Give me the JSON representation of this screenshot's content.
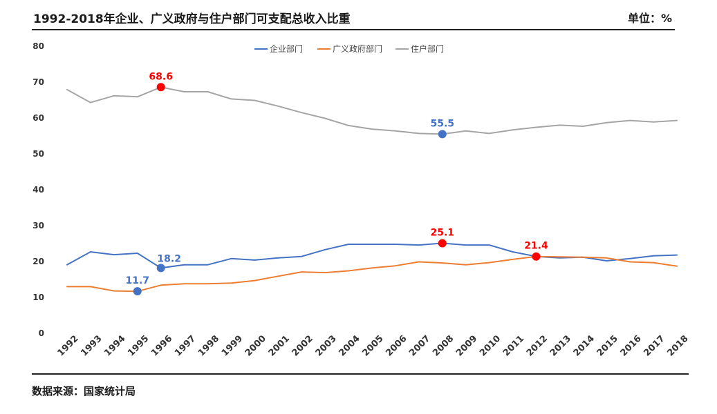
{
  "header": {
    "title": "1992-2018年企业、广义政府与住户部门可支配总收入比重",
    "unit": "单位：%"
  },
  "footer": {
    "source": "数据来源：国家统计局"
  },
  "colors": {
    "enterprise": "#4472C4",
    "government": "#ED7D31",
    "household": "#A5A5A5",
    "highlight_red": "#FF0000",
    "highlight_blue": "#4472C4"
  },
  "chart_data": {
    "type": "line",
    "title": "1992-2018年企业、广义政府与住户部门可支配总收入比重",
    "xlabel": "",
    "ylabel": "",
    "ylim": [
      0,
      80
    ],
    "yticks": [
      0,
      10,
      20,
      30,
      40,
      50,
      60,
      70,
      80
    ],
    "grid": false,
    "legend_position": "top-center",
    "categories": [
      "1992",
      "1993",
      "1994",
      "1995",
      "1996",
      "1997",
      "1998",
      "1999",
      "2000",
      "2001",
      "2002",
      "2003",
      "2004",
      "2005",
      "2006",
      "2007",
      "2008",
      "2009",
      "2010",
      "2011",
      "2012",
      "2013",
      "2014",
      "2015",
      "2016",
      "2017",
      "2018"
    ],
    "series": [
      {
        "name": "企业部门",
        "color": "#4472C4",
        "values": [
          19.1,
          22.7,
          21.9,
          22.3,
          18.2,
          19.1,
          19.1,
          20.8,
          20.4,
          21.0,
          21.4,
          23.3,
          24.8,
          24.8,
          24.8,
          24.6,
          25.1,
          24.6,
          24.6,
          22.7,
          21.4,
          21.0,
          21.2,
          20.2,
          20.8,
          21.6,
          21.8
        ]
      },
      {
        "name": "广义政府部门",
        "color": "#ED7D31",
        "values": [
          13.0,
          13.0,
          11.8,
          11.7,
          13.4,
          13.8,
          13.8,
          14.0,
          14.7,
          15.9,
          17.1,
          16.9,
          17.4,
          18.2,
          18.8,
          19.9,
          19.6,
          19.1,
          19.7,
          20.6,
          21.4,
          21.3,
          21.2,
          21.0,
          19.9,
          19.7,
          18.7
        ]
      },
      {
        "name": "住户部门",
        "color": "#A5A5A5",
        "values": [
          67.9,
          64.3,
          66.2,
          65.9,
          68.6,
          67.3,
          67.3,
          65.3,
          64.9,
          63.3,
          61.5,
          59.9,
          57.9,
          56.9,
          56.4,
          55.7,
          55.5,
          56.4,
          55.7,
          56.7,
          57.4,
          58.0,
          57.7,
          58.7,
          59.3,
          58.9,
          59.3
        ]
      }
    ],
    "annotations": [
      {
        "series": 2,
        "category": "1996",
        "value": 68.6,
        "label": "68.6",
        "color": "#FF0000",
        "position": "above"
      },
      {
        "series": 2,
        "category": "2008",
        "value": 55.5,
        "label": "55.5",
        "color": "#4472C4",
        "position": "above"
      },
      {
        "series": 0,
        "category": "1996",
        "value": 18.2,
        "label": "18.2",
        "color": "#4472C4",
        "position": "above-right"
      },
      {
        "series": 0,
        "category": "2008",
        "value": 25.1,
        "label": "25.1",
        "color": "#FF0000",
        "position": "above"
      },
      {
        "series": 1,
        "category": "1995",
        "value": 11.7,
        "label": "11.7",
        "color": "#4472C4",
        "position": "above"
      },
      {
        "series": 1,
        "category": "2012",
        "value": 21.4,
        "label": "21.4",
        "color": "#FF0000",
        "position": "above"
      }
    ]
  }
}
